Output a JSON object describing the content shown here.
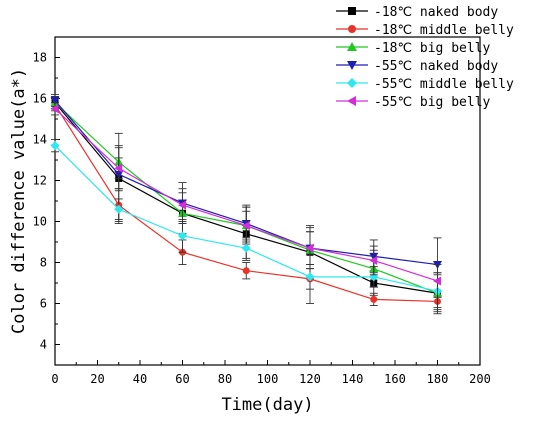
{
  "chart_data": {
    "type": "line",
    "xlabel": "Time(day)",
    "ylabel": "Color difference value(a*)",
    "xlim": [
      0,
      200
    ],
    "ylim": [
      3,
      19
    ],
    "x_ticks": [
      "0",
      "20",
      "40",
      "60",
      "80",
      "100",
      "120",
      "140",
      "160",
      "180",
      "200"
    ],
    "y_ticks": [
      "4",
      "6",
      "8",
      "10",
      "12",
      "14",
      "16",
      "18"
    ],
    "grid": false,
    "legend_position": "top-right",
    "x": [
      0,
      30,
      60,
      90,
      120,
      150,
      180
    ],
    "series": [
      {
        "name": "-18℃ naked body",
        "color": "#000000",
        "marker": "square",
        "values": [
          15.8,
          12.1,
          10.4,
          9.4,
          8.5,
          7.0,
          6.5
        ],
        "errors": [
          0.3,
          2.2,
          1.0,
          1.3,
          1.3,
          0.6,
          1.0
        ]
      },
      {
        "name": "-18℃ middle belly",
        "color": "#e8332a",
        "marker": "circle",
        "values": [
          15.7,
          10.8,
          8.5,
          7.6,
          7.2,
          6.2,
          6.1
        ],
        "errors": [
          0.3,
          0.8,
          0.6,
          0.4,
          1.2,
          0.3,
          0.3
        ]
      },
      {
        "name": "-18℃ big belly",
        "color": "#22c822",
        "marker": "triangle-up",
        "values": [
          15.8,
          12.9,
          10.4,
          9.8,
          8.6,
          7.7,
          6.5
        ],
        "errors": [
          0.3,
          0.8,
          0.5,
          0.9,
          0.9,
          0.9,
          0.9
        ]
      },
      {
        "name": "-55℃ naked body",
        "color": "#1e1eb4",
        "marker": "triangle-down",
        "values": [
          15.9,
          12.3,
          10.9,
          9.9,
          8.7,
          8.3,
          7.9
        ],
        "errors": [
          0.3,
          0.8,
          1.0,
          0.9,
          1.0,
          0.8,
          1.3
        ]
      },
      {
        "name": "-55℃ middle belly",
        "color": "#2ee8f0",
        "marker": "diamond",
        "values": [
          13.7,
          10.6,
          9.3,
          8.7,
          7.3,
          7.3,
          6.6
        ],
        "errors": [
          0.3,
          0.5,
          0.8,
          0.5,
          0.6,
          0.5,
          0.9
        ]
      },
      {
        "name": "-55℃ big belly",
        "color": "#d12ed8",
        "marker": "triangle-left",
        "values": [
          15.5,
          12.6,
          10.8,
          9.8,
          8.7,
          8.1,
          7.1
        ],
        "errors": [
          0.3,
          1.0,
          0.8,
          0.7,
          0.8,
          0.7,
          0.8
        ]
      }
    ]
  }
}
